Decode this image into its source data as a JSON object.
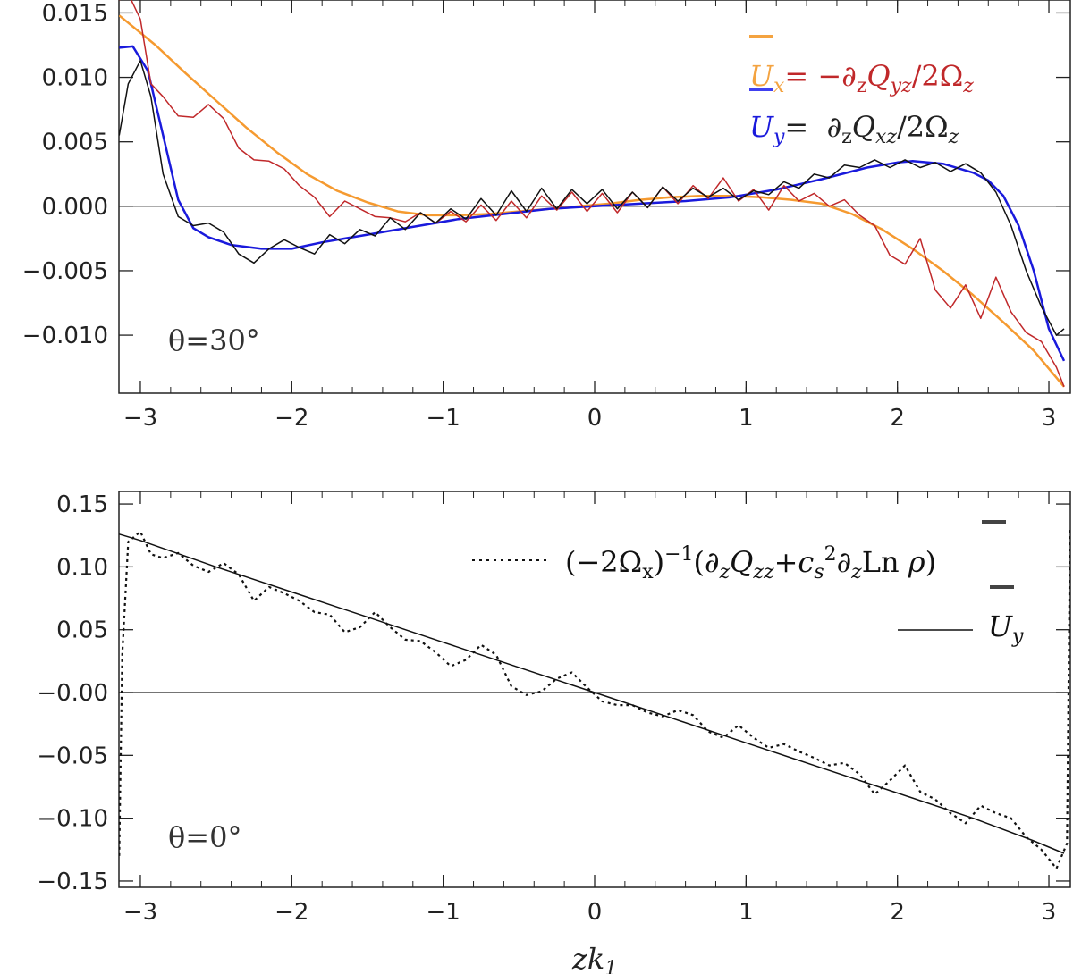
{
  "chart_data": [
    {
      "type": "line",
      "xlim": [
        -3.1416,
        3.1416
      ],
      "ylim": [
        -0.0145,
        0.016
      ],
      "x_ticks": [
        "−3",
        "−2",
        "−1",
        "0",
        "1",
        "2",
        "3"
      ],
      "y_ticks": [
        "0.015",
        "0.010",
        "0.005",
        "0.000",
        "−0.005",
        "−0.010"
      ],
      "annotation": "θ=30°",
      "legend": {
        "placement": "top-right",
        "entries": [
          {
            "lhs": "U",
            "lhs_sub": "x",
            "eq": "= −∂",
            "d_sub": "z",
            "q": "Q",
            "q_sub": "yz",
            "den": "/2Ω",
            "den_sub": "z",
            "color": "#c0282a",
            "lhs_color": "#f4a340",
            "bar_color": "#f4a340"
          },
          {
            "lhs": "U",
            "lhs_sub": "y",
            "eq": "=  ∂",
            "d_sub": "z",
            "q": "Q",
            "q_sub": "xz",
            "den": "/2Ω",
            "den_sub": "z",
            "color": "#222222",
            "lhs_color": "#1a1adc",
            "bar_color": "#4040f0"
          }
        ]
      },
      "series": [
        {
          "color": "#f59a30",
          "x": [
            -3.14,
            -2.9,
            -2.7,
            -2.5,
            -2.3,
            -2.1,
            -1.9,
            -1.7,
            -1.5,
            -1.3,
            -1.1,
            -0.9,
            -0.7,
            -0.5,
            -0.3,
            -0.1,
            0.1,
            0.3,
            0.5,
            0.7,
            0.9,
            1.1,
            1.3,
            1.5,
            1.7,
            1.9,
            2.1,
            2.3,
            2.5,
            2.7,
            2.9,
            3.1
          ],
          "values": [
            0.0148,
            0.0125,
            0.0103,
            0.0082,
            0.0061,
            0.0042,
            0.0025,
            0.0012,
            0.0003,
            -0.0004,
            -0.0007,
            -0.0007,
            -0.0006,
            -0.0004,
            -0.0002,
            0.0,
            0.0002,
            0.0005,
            0.0007,
            0.0008,
            0.0008,
            0.0007,
            0.0005,
            0.0002,
            -0.0006,
            -0.0018,
            -0.0033,
            -0.005,
            -0.0069,
            -0.009,
            -0.0112,
            -0.014
          ]
        },
        {
          "color": "#1a1adc",
          "x": [
            -3.14,
            -3.05,
            -2.95,
            -2.85,
            -2.75,
            -2.65,
            -2.55,
            -2.4,
            -2.2,
            -2.0,
            -1.8,
            -1.5,
            -1.2,
            -0.9,
            -0.6,
            -0.3,
            0.0,
            0.3,
            0.6,
            0.9,
            1.2,
            1.5,
            1.8,
            2.0,
            2.1,
            2.3,
            2.5,
            2.6,
            2.7,
            2.8,
            2.9,
            3.0,
            3.1
          ],
          "values": [
            0.0123,
            0.0124,
            0.0105,
            0.0055,
            0.0005,
            -0.0017,
            -0.0024,
            -0.003,
            -0.0033,
            -0.0033,
            -0.0028,
            -0.0022,
            -0.0016,
            -0.001,
            -0.0006,
            -0.0002,
            0.0,
            0.0002,
            0.0004,
            0.0007,
            0.0013,
            0.0021,
            0.003,
            0.0034,
            0.0035,
            0.0033,
            0.0026,
            0.002,
            0.0008,
            -0.0015,
            -0.005,
            -0.0095,
            -0.012
          ]
        },
        {
          "color": "#c0282a",
          "x": [
            -3.14,
            -3.08,
            -3.0,
            -2.93,
            -2.85,
            -2.75,
            -2.65,
            -2.55,
            -2.45,
            -2.35,
            -2.25,
            -2.15,
            -2.05,
            -1.95,
            -1.85,
            -1.75,
            -1.65,
            -1.55,
            -1.45,
            -1.35,
            -1.25,
            -1.15,
            -1.05,
            -0.95,
            -0.85,
            -0.75,
            -0.65,
            -0.55,
            -0.45,
            -0.35,
            -0.25,
            -0.15,
            -0.05,
            0.05,
            0.15,
            0.25,
            0.35,
            0.45,
            0.55,
            0.65,
            0.75,
            0.85,
            0.95,
            1.05,
            1.15,
            1.25,
            1.35,
            1.45,
            1.55,
            1.65,
            1.75,
            1.85,
            1.95,
            2.05,
            2.15,
            2.25,
            2.35,
            2.45,
            2.55,
            2.65,
            2.75,
            2.85,
            2.95,
            3.05,
            3.1
          ],
          "values": [
            0.016,
            0.0165,
            0.0145,
            0.0095,
            0.0085,
            0.007,
            0.0069,
            0.0079,
            0.0068,
            0.0045,
            0.0036,
            0.0035,
            0.0029,
            0.0016,
            0.0007,
            -0.0008,
            0.0004,
            -0.0002,
            -0.0008,
            -0.0009,
            -0.0012,
            -0.0005,
            -0.0013,
            -0.0004,
            -0.0012,
            0.0001,
            -0.0011,
            0.0004,
            -0.0009,
            0.0008,
            -0.0003,
            0.0011,
            -0.0004,
            0.001,
            -0.0005,
            0.0011,
            -0.0001,
            0.0015,
            0.0002,
            0.0016,
            0.0006,
            0.0022,
            0.0004,
            0.0013,
            -0.0003,
            0.0016,
            0.0004,
            0.001,
            0.0,
            0.0005,
            -0.0007,
            -0.0015,
            -0.0038,
            -0.0045,
            -0.0025,
            -0.0065,
            -0.0079,
            -0.0061,
            -0.0087,
            -0.0055,
            -0.0082,
            -0.0098,
            -0.0105,
            -0.0125,
            -0.014
          ]
        },
        {
          "color": "#111111",
          "x": [
            -3.14,
            -3.08,
            -3.0,
            -2.93,
            -2.85,
            -2.75,
            -2.65,
            -2.55,
            -2.45,
            -2.35,
            -2.25,
            -2.15,
            -2.05,
            -1.95,
            -1.85,
            -1.75,
            -1.65,
            -1.55,
            -1.45,
            -1.35,
            -1.25,
            -1.15,
            -1.05,
            -0.95,
            -0.85,
            -0.75,
            -0.65,
            -0.55,
            -0.45,
            -0.35,
            -0.25,
            -0.15,
            -0.05,
            0.05,
            0.15,
            0.25,
            0.35,
            0.45,
            0.55,
            0.65,
            0.75,
            0.85,
            0.95,
            1.05,
            1.15,
            1.25,
            1.35,
            1.45,
            1.55,
            1.65,
            1.75,
            1.85,
            1.95,
            2.05,
            2.15,
            2.25,
            2.35,
            2.45,
            2.55,
            2.65,
            2.75,
            2.85,
            2.95,
            3.05,
            3.1
          ],
          "values": [
            0.0055,
            0.0095,
            0.0113,
            0.0085,
            0.0025,
            -0.0008,
            -0.0015,
            -0.0013,
            -0.002,
            -0.0037,
            -0.0044,
            -0.0033,
            -0.0026,
            -0.0032,
            -0.0037,
            -0.0022,
            -0.0029,
            -0.0018,
            -0.0023,
            -0.0009,
            -0.0018,
            -0.0005,
            -0.0013,
            -0.0002,
            -0.001,
            0.0006,
            -0.0007,
            0.0012,
            -0.0004,
            0.0014,
            -0.0002,
            0.0013,
            0.0002,
            0.0013,
            -0.0002,
            0.0011,
            -0.0001,
            0.0015,
            0.0004,
            0.0014,
            0.0007,
            0.0014,
            0.0005,
            0.0012,
            0.0009,
            0.0019,
            0.0014,
            0.0025,
            0.0022,
            0.0032,
            0.003,
            0.0036,
            0.003,
            0.0036,
            0.003,
            0.0034,
            0.0027,
            0.0033,
            0.0026,
            0.0011,
            -0.0015,
            -0.005,
            -0.0078,
            -0.01,
            -0.0095
          ]
        }
      ]
    },
    {
      "type": "line",
      "xlim": [
        -3.1416,
        3.1416
      ],
      "ylim": [
        -0.155,
        0.16
      ],
      "x_ticks": [
        "−3",
        "−2",
        "−1",
        "0",
        "1",
        "2",
        "3"
      ],
      "y_ticks": [
        "0.15",
        "0.10",
        "0.05",
        "−0.00",
        "−0.05",
        "−0.10",
        "−0.15"
      ],
      "xlabel": "zk",
      "xlabel_sub": "1",
      "annotation": "θ=0°",
      "legend": {
        "placement": "top-right",
        "entries": [
          {
            "text": "(−2Ω",
            "sub1": "x",
            "sup1": ")",
            "pow": "−1",
            "body": "(∂",
            "sub2": "z",
            "q": "Q",
            "qsub": "zz",
            "plus": "+c",
            "ssub": "s",
            "ssup": "2",
            "tail": "∂",
            "tsub": "z",
            "ln": "Ln",
            "rho": "ρ",
            "close": ")",
            "style": "dotted"
          },
          {
            "lhs": "U",
            "lhs_sub": "y",
            "style": "solid"
          }
        ]
      },
      "series": [
        {
          "style": "solid",
          "color": "#111111",
          "x": [
            -3.14,
            -3.0,
            -2.5,
            -2.0,
            -1.5,
            -1.0,
            -0.5,
            0.0,
            0.5,
            1.0,
            1.5,
            2.0,
            2.5,
            2.9,
            3.1
          ],
          "values": [
            0.126,
            0.121,
            0.1,
            0.08,
            0.06,
            0.04,
            0.02,
            0.0,
            -0.02,
            -0.04,
            -0.06,
            -0.08,
            -0.1,
            -0.118,
            -0.128
          ]
        },
        {
          "style": "dotted",
          "color": "#111111",
          "x": [
            -3.14,
            -3.12,
            -3.08,
            -3.0,
            -2.93,
            -2.85,
            -2.75,
            -2.65,
            -2.55,
            -2.45,
            -2.35,
            -2.25,
            -2.15,
            -2.05,
            -1.95,
            -1.85,
            -1.75,
            -1.65,
            -1.55,
            -1.45,
            -1.35,
            -1.25,
            -1.15,
            -1.05,
            -0.95,
            -0.85,
            -0.75,
            -0.65,
            -0.55,
            -0.45,
            -0.35,
            -0.25,
            -0.15,
            -0.05,
            0.05,
            0.15,
            0.25,
            0.35,
            0.45,
            0.55,
            0.65,
            0.75,
            0.85,
            0.95,
            1.05,
            1.15,
            1.25,
            1.35,
            1.45,
            1.55,
            1.65,
            1.75,
            1.85,
            1.95,
            2.05,
            2.15,
            2.25,
            2.35,
            2.45,
            2.55,
            2.65,
            2.75,
            2.85,
            2.95,
            3.05,
            3.12,
            3.14
          ],
          "values": [
            -0.13,
            0.03,
            0.12,
            0.128,
            0.11,
            0.107,
            0.111,
            0.101,
            0.096,
            0.103,
            0.094,
            0.073,
            0.084,
            0.079,
            0.073,
            0.064,
            0.062,
            0.048,
            0.052,
            0.064,
            0.052,
            0.042,
            0.041,
            0.032,
            0.021,
            0.026,
            0.038,
            0.03,
            0.005,
            -0.002,
            0.001,
            0.011,
            0.016,
            0.004,
            -0.007,
            -0.01,
            -0.01,
            -0.016,
            -0.019,
            -0.014,
            -0.018,
            -0.031,
            -0.036,
            -0.026,
            -0.036,
            -0.044,
            -0.041,
            -0.047,
            -0.052,
            -0.058,
            -0.056,
            -0.065,
            -0.081,
            -0.07,
            -0.058,
            -0.079,
            -0.085,
            -0.096,
            -0.104,
            -0.09,
            -0.096,
            -0.1,
            -0.115,
            -0.125,
            -0.14,
            -0.12,
            0.13
          ]
        }
      ]
    }
  ]
}
